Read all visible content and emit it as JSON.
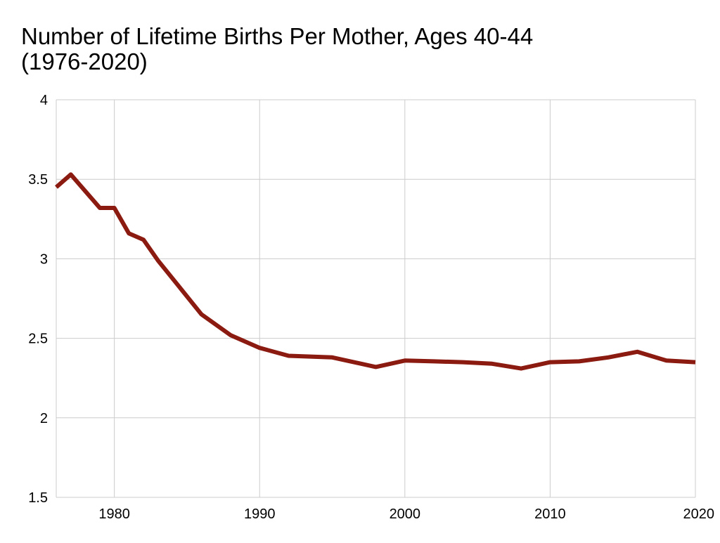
{
  "chart_data": {
    "type": "line",
    "title": "Number of Lifetime Births Per Mother, Ages 40-44",
    "subtitle": "(1976-2020)",
    "xlabel": "",
    "ylabel": "",
    "xlim": [
      1976,
      2020
    ],
    "ylim": [
      1.5,
      4
    ],
    "x_ticks": [
      1980,
      1990,
      2000,
      2010,
      2020
    ],
    "y_ticks": [
      1.5,
      2,
      2.5,
      3,
      3.5,
      4
    ],
    "grid": true,
    "legend": "none",
    "series": [
      {
        "color": "#8b1a10",
        "points": [
          [
            1976,
            3.45
          ],
          [
            1977,
            3.53
          ],
          [
            1979,
            3.32
          ],
          [
            1980,
            3.32
          ],
          [
            1981,
            3.16
          ],
          [
            1982,
            3.12
          ],
          [
            1983,
            2.99
          ],
          [
            1986,
            2.65
          ],
          [
            1988,
            2.52
          ],
          [
            1990,
            2.44
          ],
          [
            1992,
            2.39
          ],
          [
            1995,
            2.38
          ],
          [
            1998,
            2.32
          ],
          [
            2000,
            2.36
          ],
          [
            2002,
            2.355
          ],
          [
            2004,
            2.35
          ],
          [
            2006,
            2.34
          ],
          [
            2008,
            2.31
          ],
          [
            2010,
            2.35
          ],
          [
            2012,
            2.355
          ],
          [
            2014,
            2.38
          ],
          [
            2016,
            2.415
          ],
          [
            2018,
            2.36
          ],
          [
            2020,
            2.35
          ]
        ]
      }
    ],
    "colors": {
      "grid": "#cccccc",
      "line": "#8b1a10"
    }
  }
}
